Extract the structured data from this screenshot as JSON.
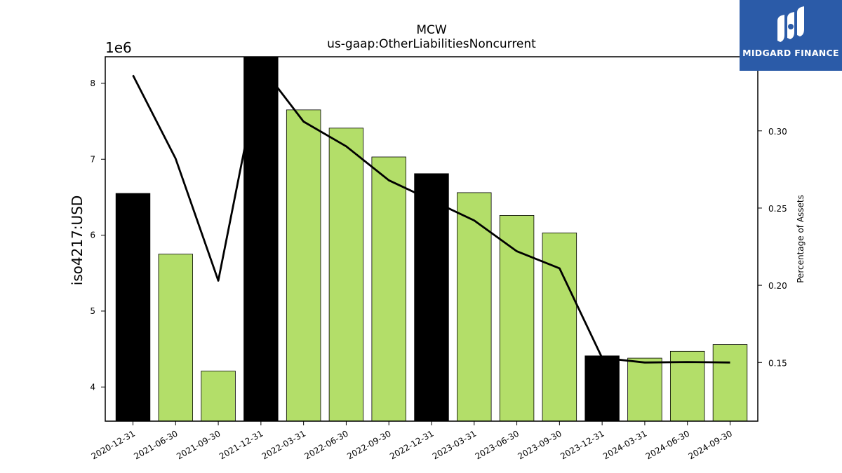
{
  "chart_data": {
    "type": "bar",
    "title": "MCW",
    "subtitle": "us-gaap:OtherLiabilitiesNoncurrent",
    "ylabel": "iso4217:USD",
    "y_offset_label": "1e6",
    "y2label": "Percentage of Assets",
    "categories": [
      "2020-12-31",
      "2021-06-30",
      "2021-09-30",
      "2021-12-31",
      "2022-03-31",
      "2022-06-30",
      "2022-09-30",
      "2022-12-31",
      "2023-03-31",
      "2023-06-30",
      "2023-09-30",
      "2023-12-31",
      "2024-03-31",
      "2024-06-30",
      "2024-09-30"
    ],
    "series": [
      {
        "type": "bar",
        "values": [
          6550000,
          5750000,
          4210000,
          8350000,
          7650000,
          7410000,
          7030000,
          6810000,
          6560000,
          6260000,
          6030000,
          4410000,
          4380000,
          4470000,
          4560000
        ],
        "colors": [
          "#000000",
          "#b3de69",
          "#b3de69",
          "#000000",
          "#b3de69",
          "#b3de69",
          "#b3de69",
          "#000000",
          "#b3de69",
          "#b3de69",
          "#b3de69",
          "#000000",
          "#b3de69",
          "#b3de69",
          "#b3de69"
        ]
      },
      {
        "type": "line",
        "axis": "right",
        "color": "#000000",
        "values": [
          0.336,
          0.282,
          0.203,
          0.342,
          0.306,
          0.29,
          0.268,
          0.255,
          0.242,
          0.222,
          0.211,
          0.153,
          0.15,
          0.1503,
          0.15
        ]
      }
    ],
    "ylim": [
      3550000,
      8350000
    ],
    "yticks": [
      4,
      5,
      6,
      7,
      8
    ],
    "y2lim": [
      0.112,
      0.348
    ],
    "y2ticks": [
      "0.15",
      "0.20",
      "0.25",
      "0.30",
      "0.35"
    ],
    "grid": false
  },
  "logo": {
    "text": "MIDGARD FINANCE",
    "background": "#2b5ba8"
  }
}
